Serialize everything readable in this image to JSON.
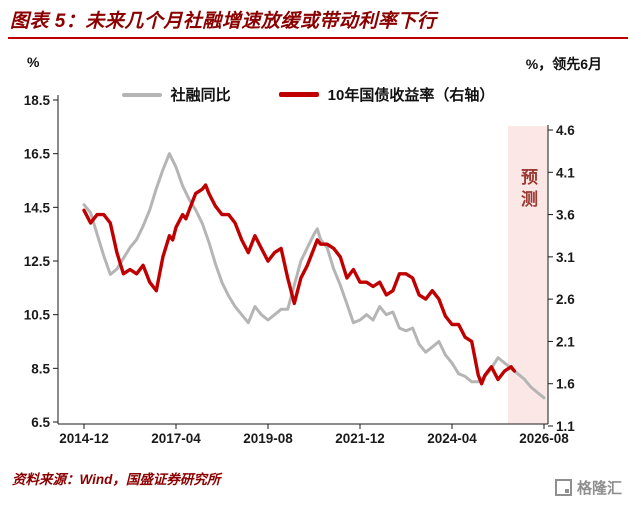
{
  "title": {
    "prefix": "图表 5：",
    "text": "未来几个月社融增速放缓或带动利率下行"
  },
  "units": {
    "left": "%",
    "right": "%，领先6月"
  },
  "legend": [
    {
      "label": "社融同比",
      "color": "#b5b5b5"
    },
    {
      "label": "10年国债收益率（右轴）",
      "color": "#c00000"
    }
  ],
  "forecast": {
    "label": "预测"
  },
  "source": "资料来源：Wind，国盛证券研究所",
  "logo_text": "格隆汇",
  "colors": {
    "title_red": "#8b0000",
    "rule_red": "#c00000",
    "series_gray": "#b5b5b5",
    "series_red": "#c00000",
    "band_pink": "#fbe8e6",
    "axis_black": "#1a1a1a",
    "forecast_text": "#9b3a33",
    "logo_gray": "#8f8f8f"
  },
  "chart_data": {
    "type": "line",
    "title": "未来几个月社融增速放缓或带动利率下行",
    "x_ticks": [
      "2014-12",
      "2017-04",
      "2019-08",
      "2021-12",
      "2024-04",
      "2026-08"
    ],
    "x_tick_months": [
      0,
      28,
      56,
      84,
      112,
      140
    ],
    "left_axis": {
      "label": "%",
      "min": 6.5,
      "max": 18.5,
      "ticks": [
        18.5,
        16.5,
        14.5,
        12.5,
        10.5,
        8.5,
        6.5
      ]
    },
    "right_axis": {
      "label": "%，领先6月",
      "min": 1.1,
      "max": 4.6,
      "ticks": [
        4.6,
        4.1,
        3.6,
        3.1,
        2.6,
        2.1,
        1.6,
        1.1
      ]
    },
    "forecast_band": {
      "start_month": 129,
      "end_month": 141,
      "label": "预测"
    },
    "grid": false,
    "legend_position": "top",
    "series": [
      {
        "name": "社融同比",
        "axis": "left",
        "color": "#b5b5b5",
        "width": 3,
        "points": [
          [
            0,
            14.6
          ],
          [
            2,
            14.3
          ],
          [
            4,
            13.5
          ],
          [
            6,
            12.7
          ],
          [
            8,
            12.0
          ],
          [
            10,
            12.2
          ],
          [
            12,
            12.6
          ],
          [
            14,
            13.0
          ],
          [
            16,
            13.3
          ],
          [
            18,
            13.8
          ],
          [
            20,
            14.4
          ],
          [
            22,
            15.2
          ],
          [
            24,
            15.9
          ],
          [
            26,
            16.5
          ],
          [
            28,
            16.0
          ],
          [
            30,
            15.3
          ],
          [
            32,
            14.8
          ],
          [
            34,
            14.4
          ],
          [
            36,
            13.9
          ],
          [
            38,
            13.2
          ],
          [
            40,
            12.4
          ],
          [
            42,
            11.7
          ],
          [
            44,
            11.2
          ],
          [
            46,
            10.8
          ],
          [
            48,
            10.5
          ],
          [
            50,
            10.2
          ],
          [
            52,
            10.8
          ],
          [
            54,
            10.5
          ],
          [
            56,
            10.3
          ],
          [
            58,
            10.5
          ],
          [
            60,
            10.7
          ],
          [
            62,
            10.7
          ],
          [
            64,
            11.6
          ],
          [
            66,
            12.5
          ],
          [
            68,
            13.0
          ],
          [
            70,
            13.5
          ],
          [
            71,
            13.7
          ],
          [
            72,
            13.3
          ],
          [
            74,
            13.0
          ],
          [
            76,
            12.2
          ],
          [
            78,
            11.6
          ],
          [
            80,
            10.9
          ],
          [
            82,
            10.2
          ],
          [
            84,
            10.3
          ],
          [
            86,
            10.5
          ],
          [
            88,
            10.3
          ],
          [
            90,
            10.8
          ],
          [
            92,
            10.5
          ],
          [
            94,
            10.6
          ],
          [
            96,
            10.0
          ],
          [
            98,
            9.9
          ],
          [
            100,
            10.0
          ],
          [
            102,
            9.4
          ],
          [
            104,
            9.1
          ],
          [
            106,
            9.3
          ],
          [
            108,
            9.5
          ],
          [
            110,
            9.0
          ],
          [
            112,
            8.7
          ],
          [
            114,
            8.3
          ],
          [
            116,
            8.2
          ],
          [
            118,
            8.0
          ],
          [
            120,
            8.0
          ],
          [
            122,
            8.2
          ],
          [
            124,
            8.5
          ],
          [
            126,
            8.9
          ],
          [
            128,
            8.7
          ],
          [
            130,
            8.5
          ],
          [
            132,
            8.3
          ],
          [
            134,
            8.1
          ],
          [
            136,
            7.8
          ],
          [
            138,
            7.6
          ],
          [
            140,
            7.4
          ]
        ]
      },
      {
        "name": "10年国债收益率（右轴）",
        "axis": "right",
        "color": "#c00000",
        "width": 3.4,
        "points": [
          [
            0,
            3.65
          ],
          [
            2,
            3.5
          ],
          [
            4,
            3.6
          ],
          [
            6,
            3.6
          ],
          [
            8,
            3.5
          ],
          [
            10,
            3.15
          ],
          [
            12,
            2.9
          ],
          [
            14,
            2.95
          ],
          [
            16,
            2.9
          ],
          [
            18,
            3.0
          ],
          [
            20,
            2.8
          ],
          [
            22,
            2.7
          ],
          [
            24,
            3.1
          ],
          [
            26,
            3.35
          ],
          [
            27,
            3.3
          ],
          [
            28,
            3.45
          ],
          [
            30,
            3.6
          ],
          [
            31,
            3.55
          ],
          [
            32,
            3.65
          ],
          [
            34,
            3.85
          ],
          [
            36,
            3.9
          ],
          [
            37,
            3.95
          ],
          [
            38,
            3.85
          ],
          [
            40,
            3.7
          ],
          [
            42,
            3.6
          ],
          [
            44,
            3.6
          ],
          [
            46,
            3.5
          ],
          [
            48,
            3.3
          ],
          [
            50,
            3.15
          ],
          [
            52,
            3.35
          ],
          [
            54,
            3.2
          ],
          [
            56,
            3.05
          ],
          [
            58,
            3.15
          ],
          [
            60,
            3.2
          ],
          [
            62,
            2.85
          ],
          [
            64,
            2.55
          ],
          [
            66,
            2.85
          ],
          [
            68,
            3.0
          ],
          [
            70,
            3.2
          ],
          [
            71,
            3.3
          ],
          [
            72,
            3.25
          ],
          [
            74,
            3.25
          ],
          [
            76,
            3.2
          ],
          [
            78,
            3.1
          ],
          [
            80,
            2.85
          ],
          [
            82,
            2.95
          ],
          [
            84,
            2.8
          ],
          [
            86,
            2.8
          ],
          [
            88,
            2.75
          ],
          [
            90,
            2.8
          ],
          [
            92,
            2.65
          ],
          [
            94,
            2.7
          ],
          [
            96,
            2.9
          ],
          [
            98,
            2.9
          ],
          [
            100,
            2.85
          ],
          [
            102,
            2.65
          ],
          [
            104,
            2.6
          ],
          [
            106,
            2.7
          ],
          [
            108,
            2.6
          ],
          [
            110,
            2.4
          ],
          [
            112,
            2.3
          ],
          [
            114,
            2.3
          ],
          [
            116,
            2.15
          ],
          [
            118,
            2.1
          ],
          [
            120,
            1.7
          ],
          [
            121,
            1.6
          ],
          [
            122,
            1.7
          ],
          [
            124,
            1.8
          ],
          [
            126,
            1.65
          ],
          [
            128,
            1.75
          ],
          [
            130,
            1.8
          ],
          [
            131,
            1.75
          ]
        ]
      }
    ]
  }
}
